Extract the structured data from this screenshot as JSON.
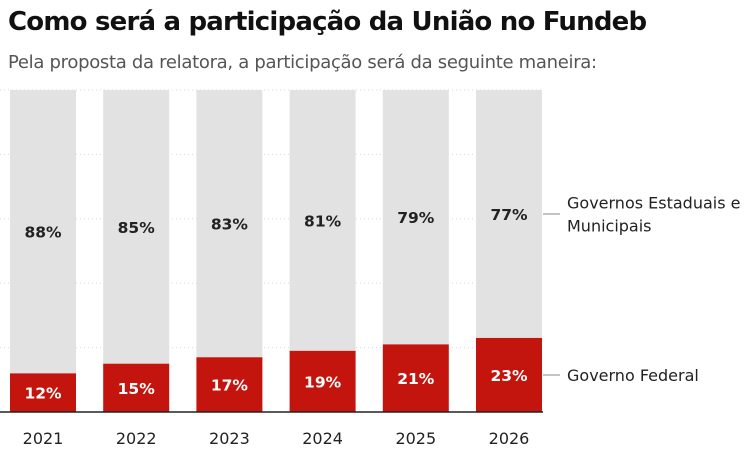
{
  "title": "Como será a participação da União no Fundeb",
  "subtitle": "Pela proposta da relatora, a participação será da seguinte maneira:",
  "colors": {
    "federal": "#c3150d",
    "states": "#e2e2e2",
    "federal_text": "#ffffff",
    "states_text": "#222222"
  },
  "chart_data": {
    "type": "bar",
    "stacked": true,
    "categories": [
      "2021",
      "2022",
      "2023",
      "2024",
      "2025",
      "2026"
    ],
    "series": [
      {
        "name": "Governo Federal",
        "values": [
          12,
          15,
          17,
          19,
          21,
          23
        ],
        "labels": [
          "12%",
          "15%",
          "17%",
          "19%",
          "21%",
          "23%"
        ]
      },
      {
        "name": "Governos Estaduais e Municipais",
        "values": [
          88,
          85,
          83,
          81,
          79,
          77
        ],
        "labels": [
          "88%",
          "85%",
          "83%",
          "81%",
          "79%",
          "77%"
        ]
      }
    ],
    "legend": [
      {
        "series": "Governos Estaduais e Municipais",
        "lines": [
          "Governos Estaduais e",
          "Municipais"
        ]
      },
      {
        "series": "Governo Federal",
        "lines": [
          "Governo Federal"
        ]
      }
    ],
    "title": "Como será a participação da União no Fundeb",
    "xlabel": "",
    "ylabel": "",
    "ylim": [
      0,
      100
    ],
    "grid": true
  }
}
